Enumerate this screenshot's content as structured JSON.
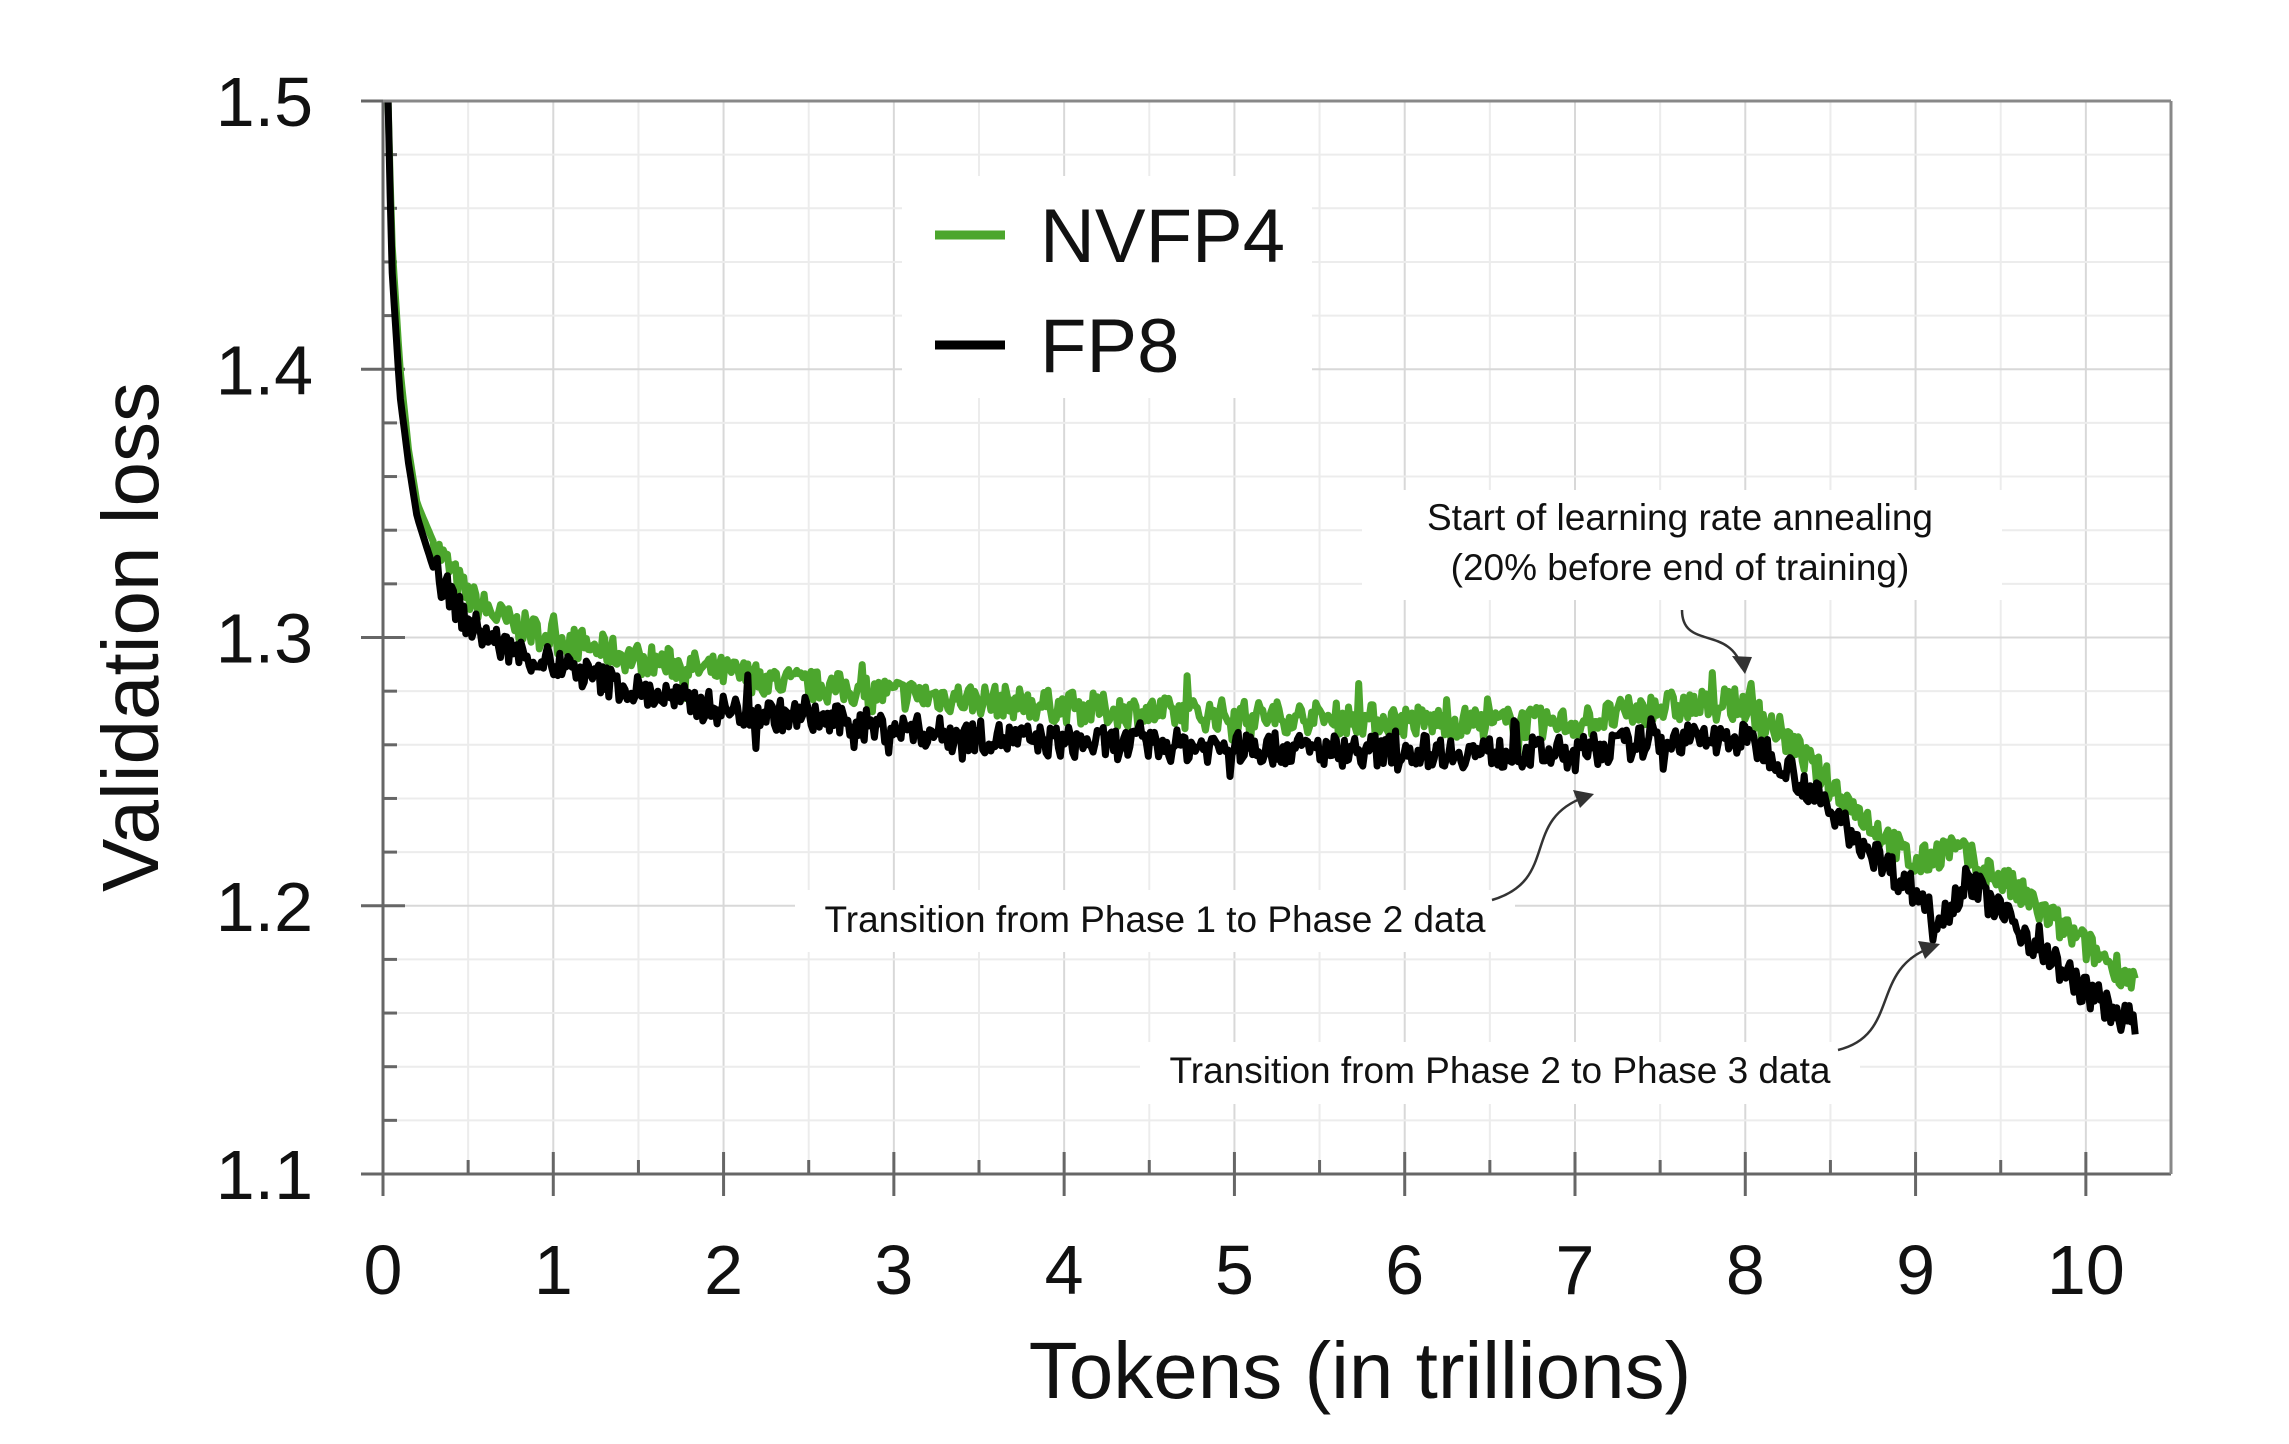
{
  "chart_data": {
    "type": "line",
    "title": "",
    "xlabel": "Tokens (in trillions)",
    "ylabel": "Validation loss",
    "xlim": [
      0,
      10.5
    ],
    "ylim": [
      1.1,
      1.5
    ],
    "xticks": [
      "0",
      "1",
      "2",
      "3",
      "4",
      "5",
      "6",
      "7",
      "8",
      "9",
      "10"
    ],
    "yticks": [
      "1.1",
      "1.2",
      "1.3",
      "1.4",
      "1.5"
    ],
    "grid": true,
    "legend_placement": "top-center",
    "series": [
      {
        "name": "NVFP4",
        "color": "#4ca62d",
        "x": [
          0.03,
          0.05,
          0.1,
          0.15,
          0.2,
          0.3,
          0.5,
          0.75,
          1,
          1.5,
          2,
          2.5,
          3,
          3.5,
          4,
          4.5,
          5,
          5.5,
          6,
          6.5,
          7,
          7.5,
          8,
          8.2,
          8.5,
          9,
          9.2,
          9.5,
          10,
          10.3
        ],
        "y": [
          1.5,
          1.45,
          1.4,
          1.37,
          1.35,
          1.335,
          1.315,
          1.305,
          1.3,
          1.292,
          1.287,
          1.282,
          1.279,
          1.277,
          1.274,
          1.272,
          1.271,
          1.27,
          1.269,
          1.268,
          1.268,
          1.274,
          1.275,
          1.265,
          1.245,
          1.215,
          1.222,
          1.21,
          1.185,
          1.172
        ]
      },
      {
        "name": "FP8",
        "color": "#000000",
        "x": [
          0.03,
          0.05,
          0.1,
          0.15,
          0.2,
          0.3,
          0.5,
          0.75,
          1,
          1.5,
          2,
          2.5,
          3,
          3.5,
          4,
          4.5,
          5,
          5.5,
          6,
          6.5,
          7,
          7.5,
          8,
          8.2,
          8.5,
          9,
          9.15,
          9.3,
          9.5,
          10,
          10.3
        ],
        "y": [
          1.5,
          1.44,
          1.39,
          1.365,
          1.345,
          1.325,
          1.305,
          1.295,
          1.29,
          1.28,
          1.273,
          1.27,
          1.266,
          1.263,
          1.261,
          1.26,
          1.259,
          1.258,
          1.258,
          1.257,
          1.257,
          1.262,
          1.262,
          1.255,
          1.235,
          1.205,
          1.195,
          1.21,
          1.198,
          1.168,
          1.155
        ]
      }
    ],
    "annotations": [
      {
        "lines": [
          "Start of learning rate annealing",
          "(20% before end of training)"
        ],
        "x": 8.0,
        "y": 1.275
      },
      {
        "lines": [
          "Transition from Phase 1 to Phase 2 data"
        ],
        "x": 7.1,
        "y": 1.24
      },
      {
        "lines": [
          "Transition from Phase 2 to Phase 3 data"
        ],
        "x": 9.15,
        "y": 1.19
      }
    ]
  }
}
